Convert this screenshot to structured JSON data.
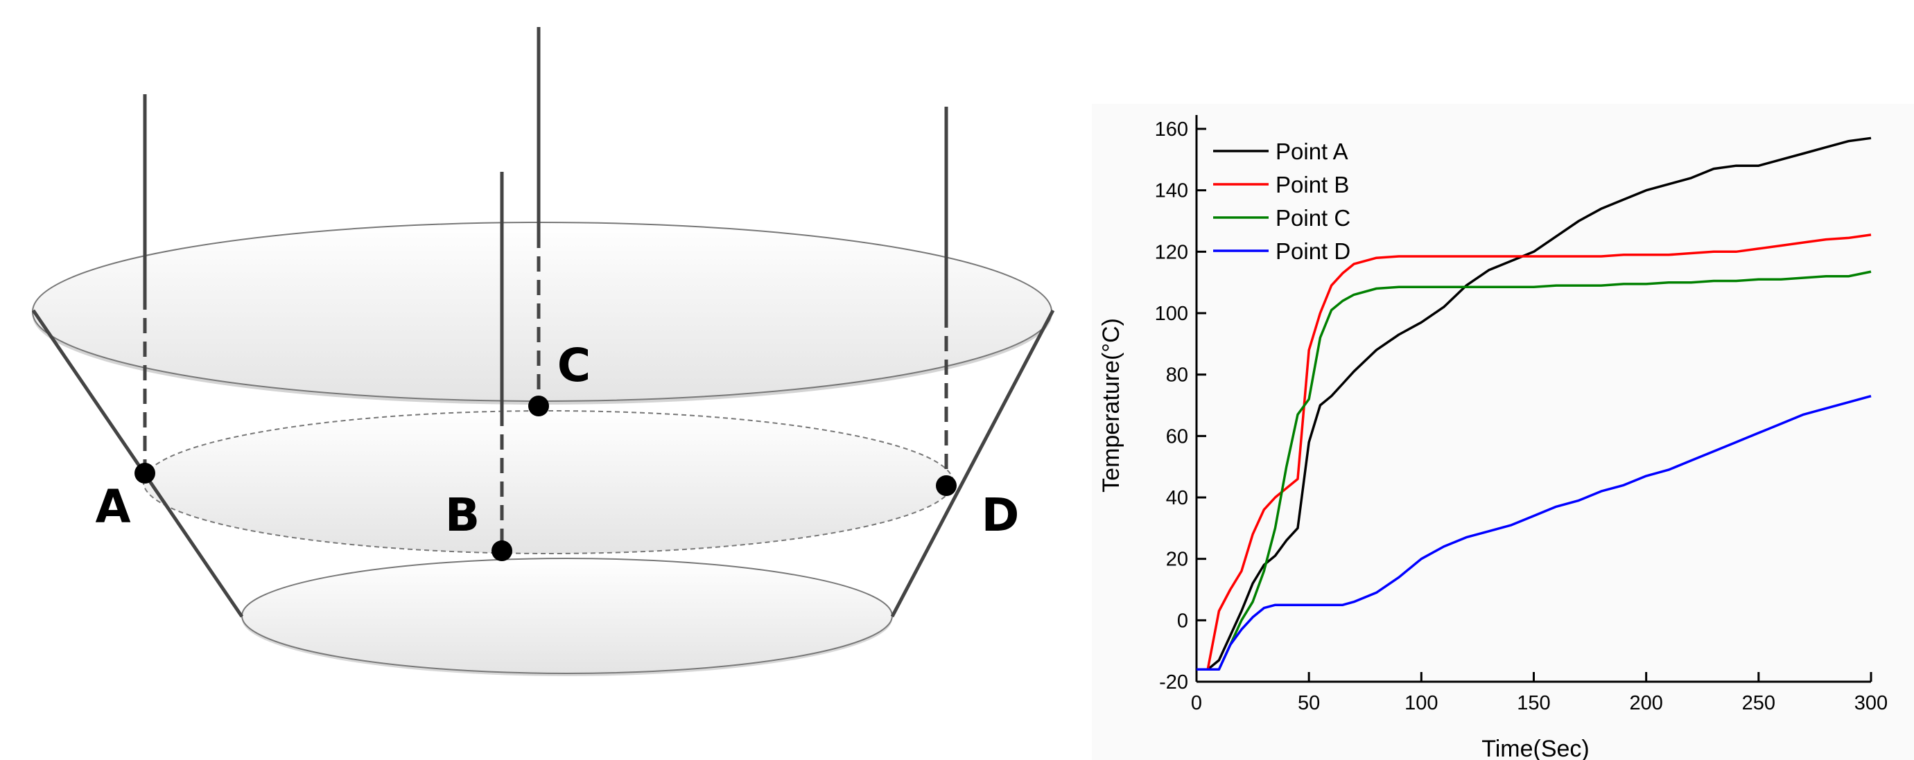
{
  "diagram": {
    "labels": [
      "A",
      "B",
      "C",
      "D"
    ]
  },
  "chart_data": {
    "type": "line",
    "x_label": "Time(Sec)",
    "y_label": "Temperature(°C)",
    "x": [
      0,
      5,
      10,
      15,
      20,
      25,
      30,
      35,
      40,
      45,
      50,
      55,
      60,
      65,
      70,
      80,
      90,
      100,
      110,
      120,
      130,
      140,
      150,
      160,
      170,
      180,
      190,
      200,
      210,
      220,
      230,
      240,
      250,
      260,
      270,
      280,
      290,
      300
    ],
    "series": [
      {
        "name": "Point A",
        "color": "#000000",
        "values": [
          -16,
          -16,
          -13,
          -5,
          3,
          12,
          18,
          21,
          26,
          30,
          58,
          70,
          73,
          77,
          81,
          88,
          93,
          97,
          102,
          109,
          114,
          117,
          120,
          125,
          130,
          134,
          137,
          140,
          142,
          144,
          147,
          148,
          148,
          150,
          152,
          154,
          156,
          157
        ]
      },
      {
        "name": "Point B",
        "color": "#ff0000",
        "values": [
          -16,
          -16,
          3,
          10,
          16,
          28,
          36,
          40,
          43,
          46,
          88,
          100,
          109,
          113,
          116,
          118,
          118.5,
          118.5,
          118.5,
          118.5,
          118.5,
          118.5,
          118.5,
          118.5,
          118.5,
          118.5,
          119,
          119,
          119,
          119.5,
          120,
          120,
          121,
          122,
          123,
          124,
          124.5,
          125.5
        ]
      },
      {
        "name": "Point C",
        "color": "#008000",
        "values": [
          -16,
          -16,
          -16,
          -8,
          0,
          6,
          16,
          30,
          50,
          67,
          72,
          92,
          101,
          104,
          106,
          108,
          108.5,
          108.5,
          108.5,
          108.5,
          108.5,
          108.5,
          108.5,
          109,
          109,
          109,
          109.5,
          109.5,
          110,
          110,
          110.5,
          110.5,
          111,
          111,
          111.5,
          112,
          112,
          113.5
        ]
      },
      {
        "name": "Point D",
        "color": "#0000ff",
        "values": [
          -16,
          -16,
          -16,
          -8,
          -3,
          1,
          4,
          5,
          5,
          5,
          5,
          5,
          5,
          5,
          6,
          9,
          14,
          20,
          24,
          27,
          29,
          31,
          34,
          37,
          39,
          42,
          44,
          47,
          49,
          52,
          55,
          58,
          61,
          64,
          67,
          69,
          71,
          73
        ]
      }
    ],
    "xlim": [
      0,
      300
    ],
    "xticks": [
      0,
      50,
      100,
      150,
      200,
      250,
      300
    ],
    "ylim": [
      -20,
      160
    ],
    "yticks": [
      -20,
      0,
      20,
      40,
      60,
      80,
      100,
      120,
      140,
      160
    ],
    "legend": "upper-left"
  }
}
